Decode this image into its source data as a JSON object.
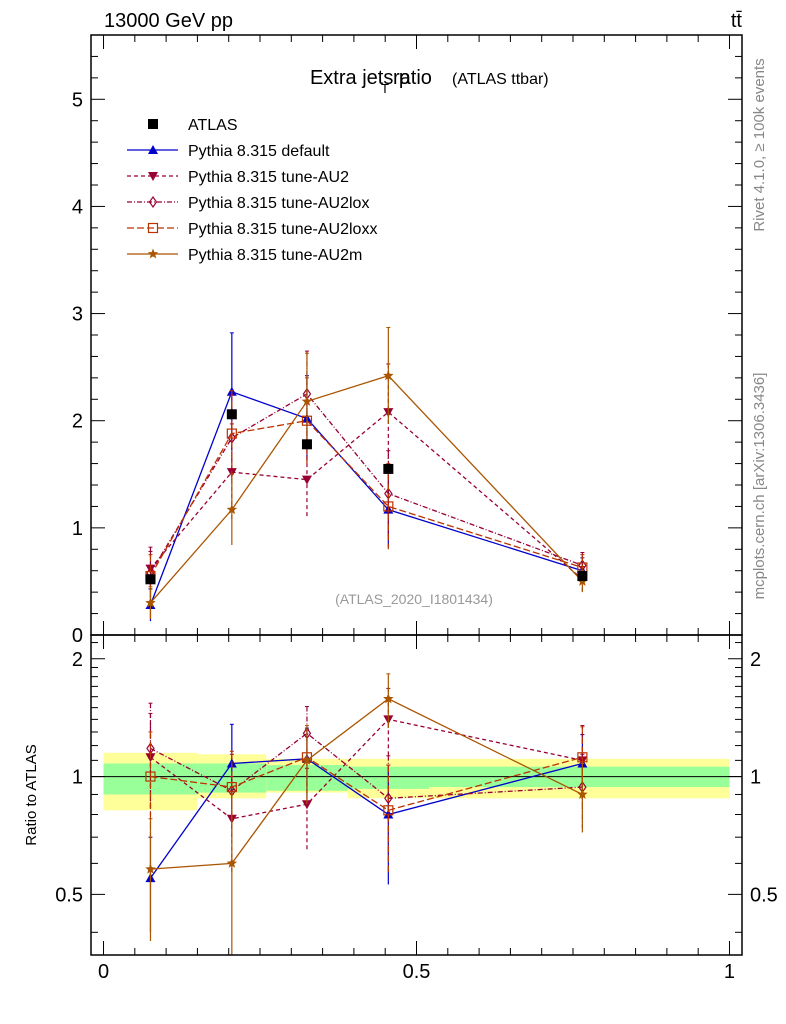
{
  "header": {
    "left": "13000 GeV pp",
    "right": "tt̄"
  },
  "side_text": {
    "rivet": "Rivet 4.1.0, ≥ 100k events",
    "mcplots": "mcplots.cern.ch [arXiv:1306.3436]"
  },
  "chart_data": {
    "type": "scatter",
    "title_main": "Extra jets p",
    "title_sub": "T",
    "title_rest": " ratio",
    "title_suffix": "(ATLAS ttbar)",
    "watermark": "(ATLAS_2020_I1801434)",
    "ylabel_ratio": "Ratio to ATLAS",
    "xlim": [
      -0.02,
      1.02
    ],
    "ylim_main": [
      0,
      5.6
    ],
    "ylim_ratio": [
      0.35,
      2.3
    ],
    "x_ticks": [
      {
        "v": 0,
        "label": "0"
      },
      {
        "v": 0.5,
        "label": "0.5"
      },
      {
        "v": 1,
        "label": "1"
      }
    ],
    "y_ticks_main": [
      {
        "v": 0,
        "label": "0"
      },
      {
        "v": 1,
        "label": "1"
      },
      {
        "v": 2,
        "label": "2"
      },
      {
        "v": 3,
        "label": "3"
      },
      {
        "v": 4,
        "label": "4"
      },
      {
        "v": 5,
        "label": "5"
      }
    ],
    "y_ticks_ratio": [
      {
        "v": 0.5,
        "label": "0.5"
      },
      {
        "v": 1,
        "label": "1"
      },
      {
        "v": 2,
        "label": "2"
      }
    ],
    "x": [
      0.075,
      0.205,
      0.325,
      0.455,
      0.765
    ],
    "bin_edges": [
      0,
      0.15,
      0.26,
      0.39,
      0.52,
      1.0
    ],
    "band_green": [
      [
        0.9,
        1.08
      ],
      [
        0.91,
        1.08
      ],
      [
        0.92,
        1.07
      ],
      [
        0.93,
        1.06
      ],
      [
        0.94,
        1.06
      ]
    ],
    "band_yellow": [
      [
        0.82,
        1.15
      ],
      [
        0.88,
        1.14
      ],
      [
        0.91,
        1.11
      ],
      [
        0.88,
        1.11
      ],
      [
        0.88,
        1.11
      ]
    ],
    "atlas": {
      "name": "ATLAS",
      "values": [
        0.52,
        2.06,
        1.78,
        1.55,
        0.55
      ]
    },
    "series": [
      {
        "name": "Pythia 8.315 default",
        "color": "#0000cc",
        "dash": "",
        "marker": "triangle-up",
        "values": [
          0.28,
          2.27,
          2.02,
          1.17,
          0.6
        ],
        "err": [
          0.15,
          0.55,
          0.4,
          0.35,
          0.12
        ],
        "ratio": [
          0.55,
          1.08,
          1.11,
          0.8,
          1.08
        ],
        "ratio_err": [
          0.15,
          0.28,
          0.22,
          0.27,
          0.2
        ]
      },
      {
        "name": "Pythia 8.315 tune-AU2",
        "color": "#990033",
        "dash": "4,3",
        "marker": "triangle-down",
        "values": [
          0.62,
          1.52,
          1.45,
          2.08,
          0.52
        ],
        "err": [
          0.2,
          0.45,
          0.35,
          0.45,
          0.12
        ],
        "ratio": [
          1.12,
          0.78,
          0.85,
          1.4,
          1.1
        ],
        "ratio_err": [
          0.33,
          0.22,
          0.2,
          0.28,
          0.25
        ]
      },
      {
        "name": "Pythia 8.315 tune-AU2lox",
        "color": "#990033",
        "dash": "5,2,1,2",
        "marker": "diamond",
        "values": [
          0.58,
          1.84,
          2.25,
          1.32,
          0.65
        ],
        "err": [
          0.2,
          0.4,
          0.4,
          0.4,
          0.12
        ],
        "ratio": [
          1.18,
          0.92,
          1.29,
          0.88,
          0.94
        ],
        "ratio_err": [
          0.36,
          0.22,
          0.22,
          0.25,
          0.2
        ]
      },
      {
        "name": "Pythia 8.315 tune-AU2loxx",
        "color": "#bb3300",
        "dash": "7,3",
        "marker": "square-open",
        "values": [
          0.55,
          1.88,
          2.0,
          1.2,
          0.63
        ],
        "err": [
          0.2,
          0.4,
          0.4,
          0.4,
          0.12
        ],
        "ratio": [
          1.0,
          0.94,
          1.12,
          0.82,
          1.12
        ],
        "ratio_err": [
          0.3,
          0.22,
          0.2,
          0.25,
          0.22
        ]
      },
      {
        "name": "Pythia 8.315 tune-AU2m",
        "color": "#aa5500",
        "dash": "",
        "marker": "star",
        "values": [
          0.3,
          1.17,
          2.18,
          2.42,
          0.5
        ],
        "err": [
          0.15,
          0.33,
          0.45,
          0.45,
          0.1
        ],
        "ratio": [
          0.58,
          0.6,
          1.1,
          1.58,
          0.9
        ],
        "ratio_err": [
          0.2,
          0.3,
          0.25,
          0.25,
          0.18
        ]
      }
    ]
  }
}
